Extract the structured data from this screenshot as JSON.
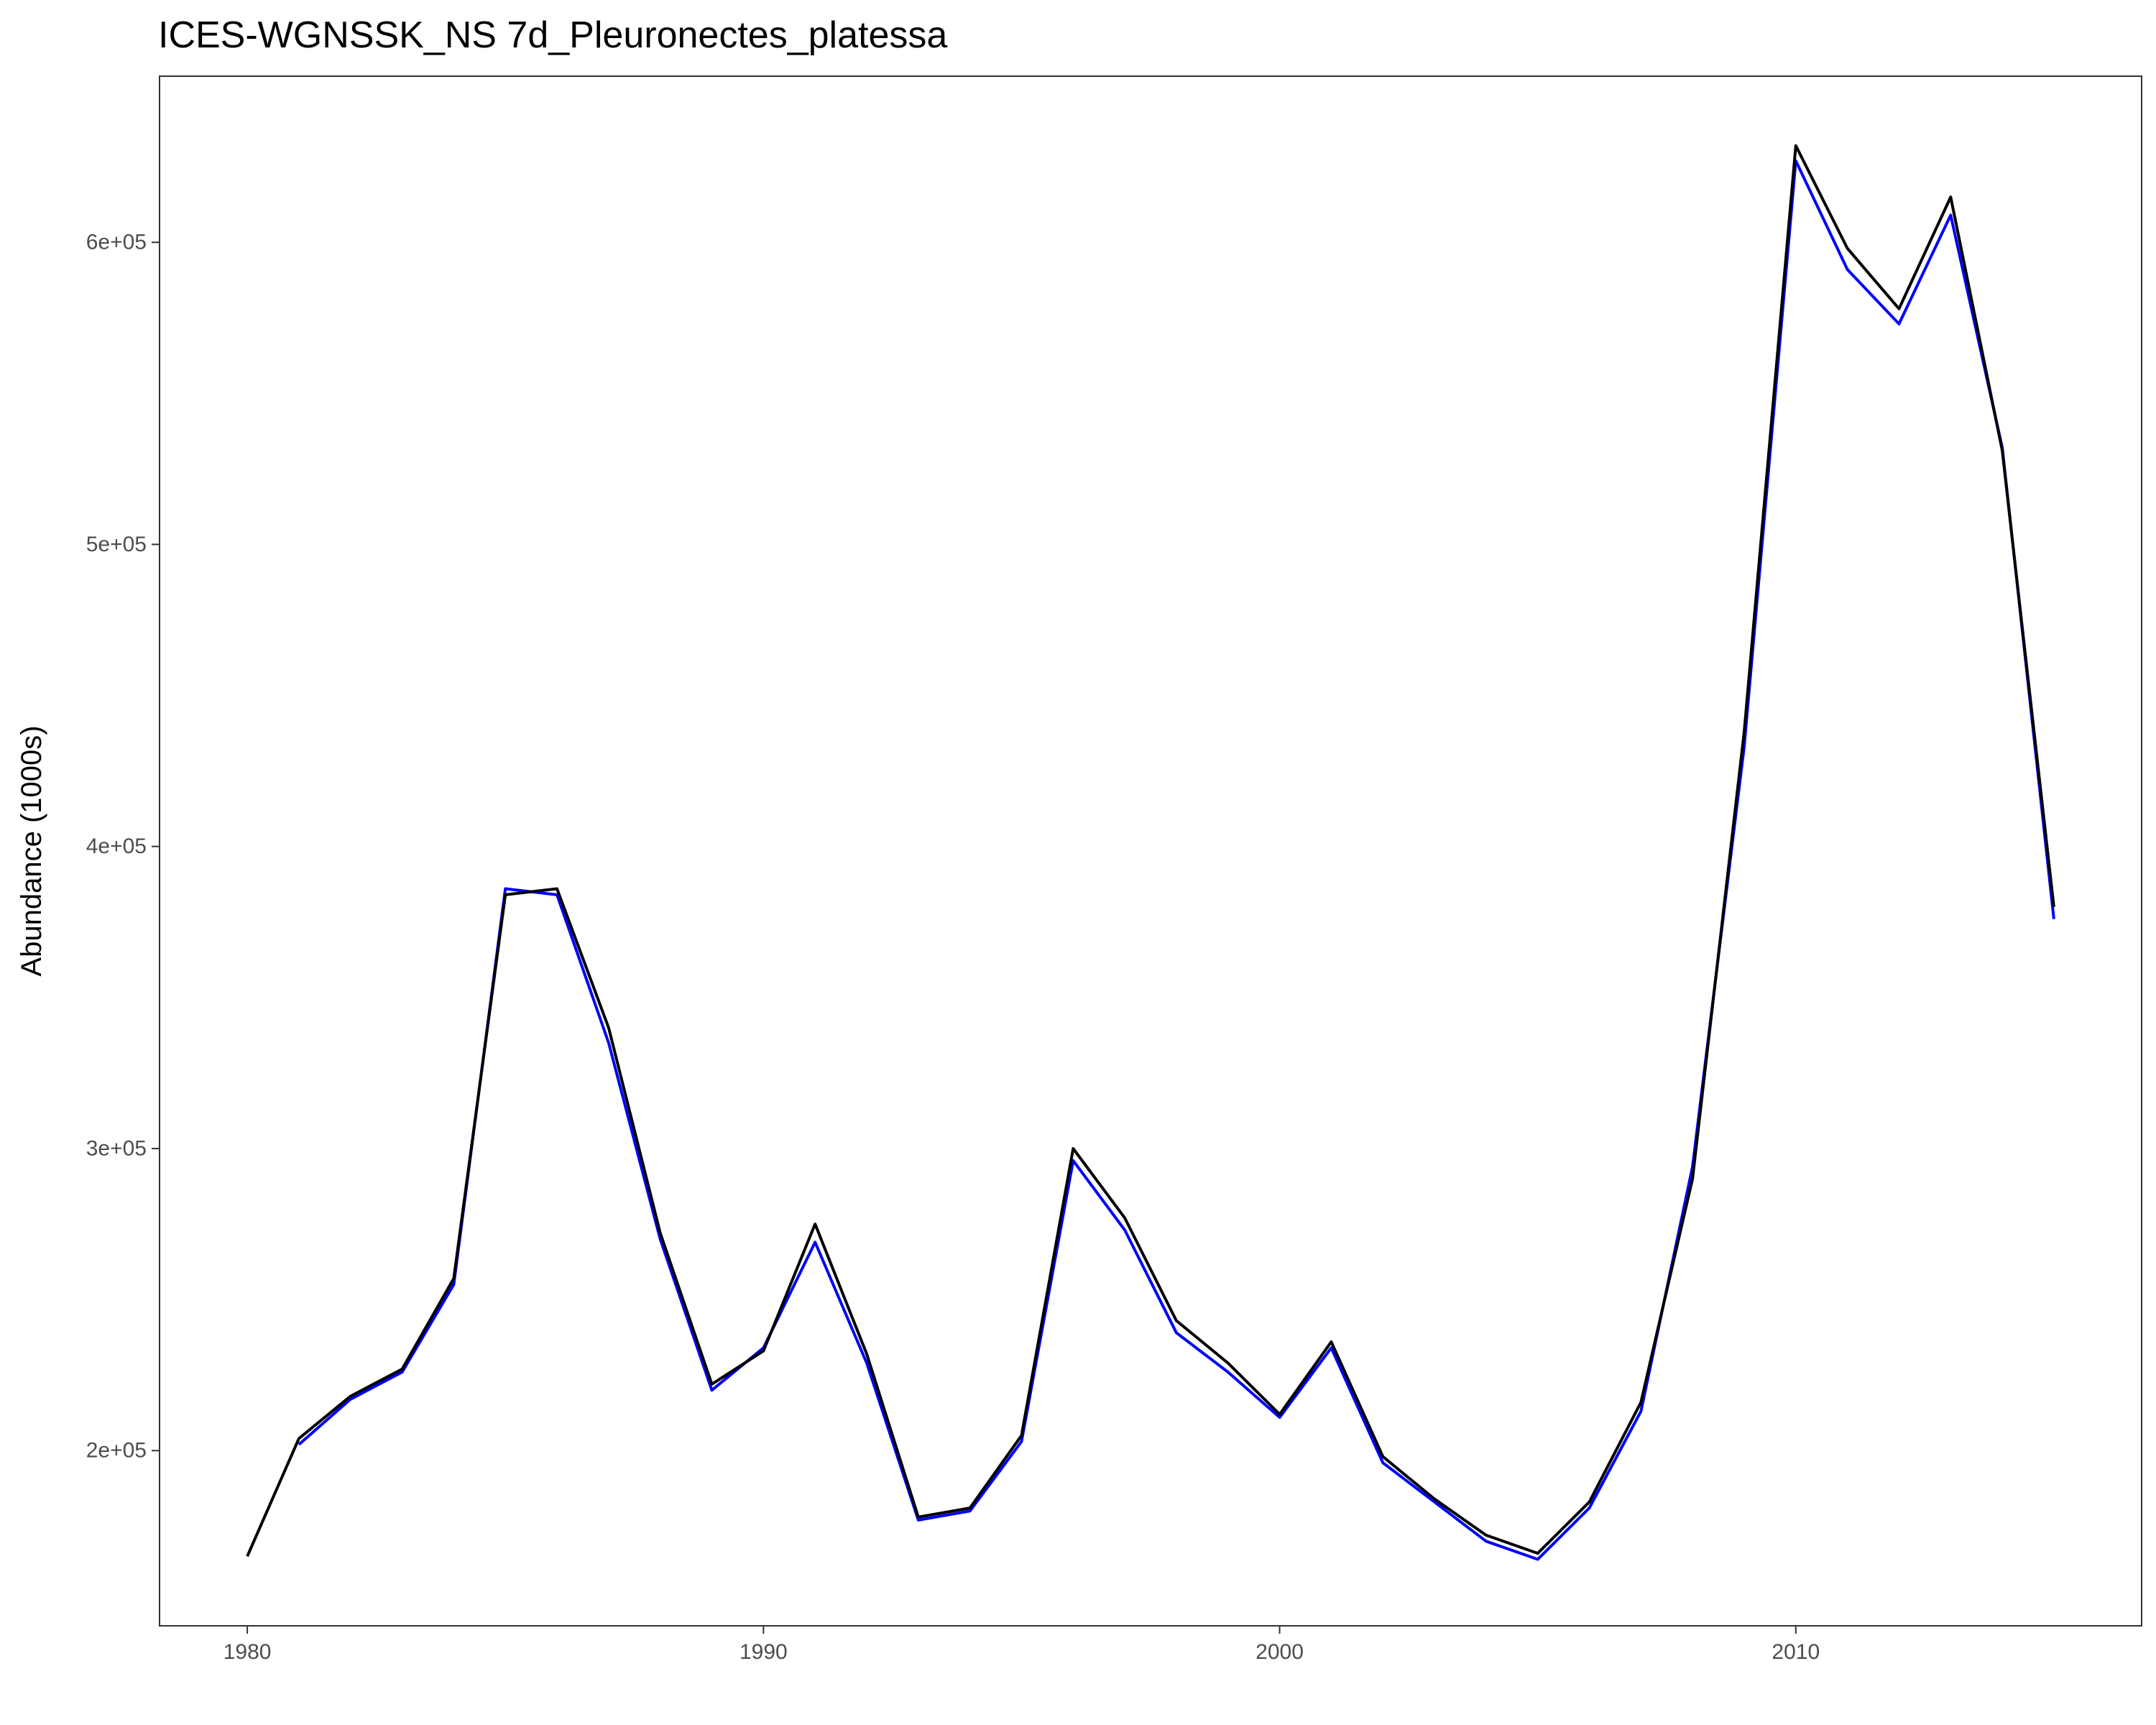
{
  "chart_data": {
    "type": "line",
    "title": "ICES-WGNSSK_NS 7d_Pleuronectes_platessa",
    "xlabel": "",
    "ylabel": "Abundance (1000s)",
    "xlim": [
      1978.3,
      2016.7
    ],
    "ylim": [
      142000,
      655000
    ],
    "x_ticks": [
      1980,
      1990,
      2000,
      2010
    ],
    "x_tick_labels": [
      "1980",
      "1990",
      "2000",
      "2010"
    ],
    "y_ticks": [
      200000,
      300000,
      400000,
      500000,
      600000
    ],
    "y_tick_labels": [
      "2e+05",
      "3e+05",
      "4e+05",
      "5e+05",
      "6e+05"
    ],
    "grid": false,
    "legend": "none",
    "series": [
      {
        "color": "#0000ff",
        "x": [
          1981,
          1982,
          1983,
          1984,
          1985,
          1986,
          1987,
          1988,
          1989,
          1990,
          1991,
          1992,
          1993,
          1994,
          1995,
          1996,
          1997,
          1998,
          1999,
          2000,
          2001,
          2002,
          2003,
          2004,
          2005,
          2006,
          2007,
          2008,
          2009,
          2010,
          2011,
          2012,
          2013,
          2014,
          2015
        ],
        "values": [
          202000,
          217000,
          226000,
          255000,
          386000,
          384000,
          335000,
          270000,
          220000,
          234000,
          269000,
          229000,
          177000,
          180000,
          203000,
          296000,
          273000,
          239000,
          226000,
          211000,
          234000,
          196000,
          183000,
          170000,
          164000,
          181000,
          213000,
          294000,
          433000,
          627000,
          591000,
          573000,
          609000,
          532000,
          376000
        ]
      },
      {
        "color": "#000000",
        "x": [
          1980,
          1981,
          1982,
          1983,
          1984,
          1985,
          1986,
          1987,
          1988,
          1989,
          1990,
          1991,
          1992,
          1993,
          1994,
          1995,
          1996,
          1997,
          1998,
          1999,
          2000,
          2001,
          2002,
          2003,
          2004,
          2005,
          2006,
          2007,
          2008,
          2009,
          2010,
          2011,
          2012,
          2013,
          2014,
          2015
        ],
        "values": [
          165000,
          204000,
          218000,
          227000,
          257000,
          384000,
          386000,
          340000,
          272000,
          222000,
          233000,
          275000,
          232000,
          178000,
          181000,
          205000,
          300000,
          277000,
          243000,
          229000,
          212000,
          236000,
          198000,
          184000,
          172000,
          166000,
          183000,
          216000,
          290000,
          438000,
          632000,
          598000,
          578000,
          615000,
          531000,
          380000
        ]
      }
    ]
  }
}
